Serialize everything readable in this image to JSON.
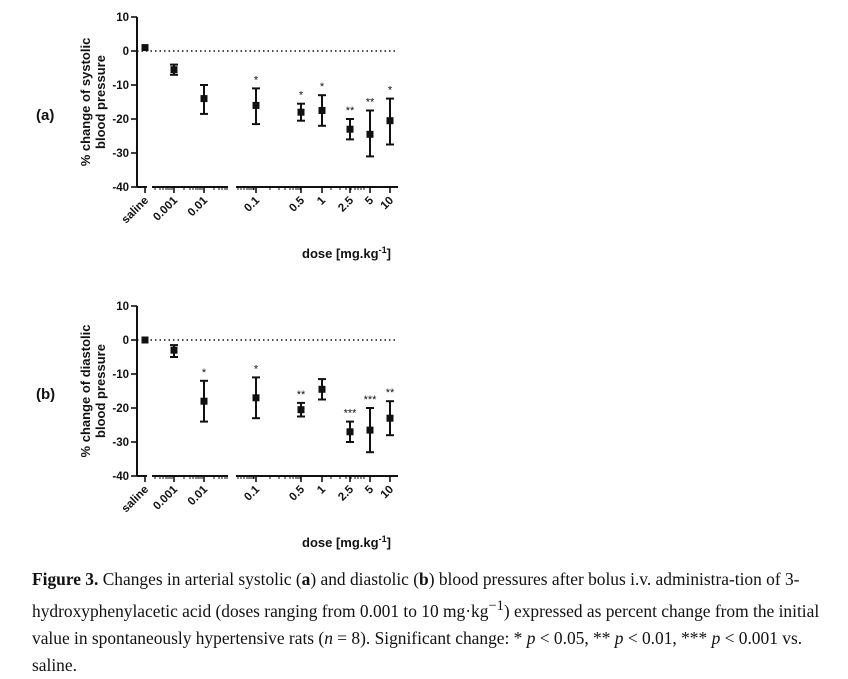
{
  "chart_data": [
    {
      "type": "scatter",
      "panel_label": "(a)",
      "ylabel_lines": [
        "% change of systolic",
        "blood pressure"
      ],
      "xlabel_text": "dose [mg.kg",
      "xlabel_sup": "-1",
      "xlabel_end": "]",
      "ylim": [
        -40,
        10
      ],
      "yticks": [
        10,
        0,
        -10,
        -20,
        -30,
        -40
      ],
      "ytick_labels": [
        "10",
        "0",
        "-10",
        "-20",
        "-30",
        "-40"
      ],
      "zero_line": "dotted",
      "x_axis": "saline + log dose (broken axis)",
      "categories": [
        "saline",
        "0.001",
        "0.01",
        "0.1",
        "0.5",
        "1",
        "2.5",
        "5",
        "10"
      ],
      "values": [
        1,
        -5.5,
        -14,
        -16,
        -18,
        -17.5,
        -23,
        -24.5,
        -20.5
      ],
      "err_low": [
        1,
        -7,
        -18.5,
        -21.5,
        -20.5,
        -22,
        -26,
        -31,
        -27.5
      ],
      "err_high": [
        1,
        -4,
        -10,
        -11,
        -15.5,
        -13,
        -20,
        -17.5,
        -14
      ],
      "significance": [
        "",
        "",
        "",
        "*",
        "*",
        "*",
        "**",
        "**",
        "*"
      ]
    },
    {
      "type": "scatter",
      "panel_label": "(b)",
      "ylabel_lines": [
        "% change of diastolic",
        "blood pressure"
      ],
      "xlabel_text": "dose [mg.kg",
      "xlabel_sup": "-1",
      "xlabel_end": "]",
      "ylim": [
        -40,
        10
      ],
      "yticks": [
        10,
        0,
        -10,
        -20,
        -30,
        -40
      ],
      "ytick_labels": [
        "10",
        "0",
        "-10",
        "-20",
        "-30",
        "-40"
      ],
      "zero_line": "dotted",
      "x_axis": "saline + log dose (broken axis)",
      "categories": [
        "saline",
        "0.001",
        "0.01",
        "0.1",
        "0.5",
        "1",
        "2.5",
        "5",
        "10"
      ],
      "values": [
        0,
        -3,
        -18,
        -17,
        -20.5,
        -14.5,
        -27,
        -26.5,
        -23
      ],
      "err_low": [
        0,
        -5,
        -24,
        -23,
        -22.5,
        -17.5,
        -30,
        -33,
        -28
      ],
      "err_high": [
        0,
        -1.5,
        -12,
        -11,
        -18.5,
        -11.5,
        -24,
        -20,
        -18
      ],
      "significance": [
        "",
        "",
        "*",
        "*",
        "**",
        "",
        "***",
        "***",
        "**"
      ]
    }
  ],
  "caption": {
    "label": "Figure 3.",
    "t1": " Changes in arterial systolic (",
    "a": "a",
    "t2": ") and diastolic (",
    "b": "b",
    "t3": ") blood pressures after bolus i.v. administra-tion of 3-hydroxyphenylacetic acid (doses ranging from 0.001 to 10 mg·kg",
    "sup": "−1",
    "t4": ") expressed as percent change from the initial value in spontaneously hypertensive rats (",
    "n": "n",
    "t5": " = 8). Significant change: * ",
    "p1": "p",
    "t6": " < 0.05, ** ",
    "p2": "p",
    "t7": " < 0.01, *** ",
    "p3": "p",
    "t8": " < 0.001 vs. saline."
  }
}
